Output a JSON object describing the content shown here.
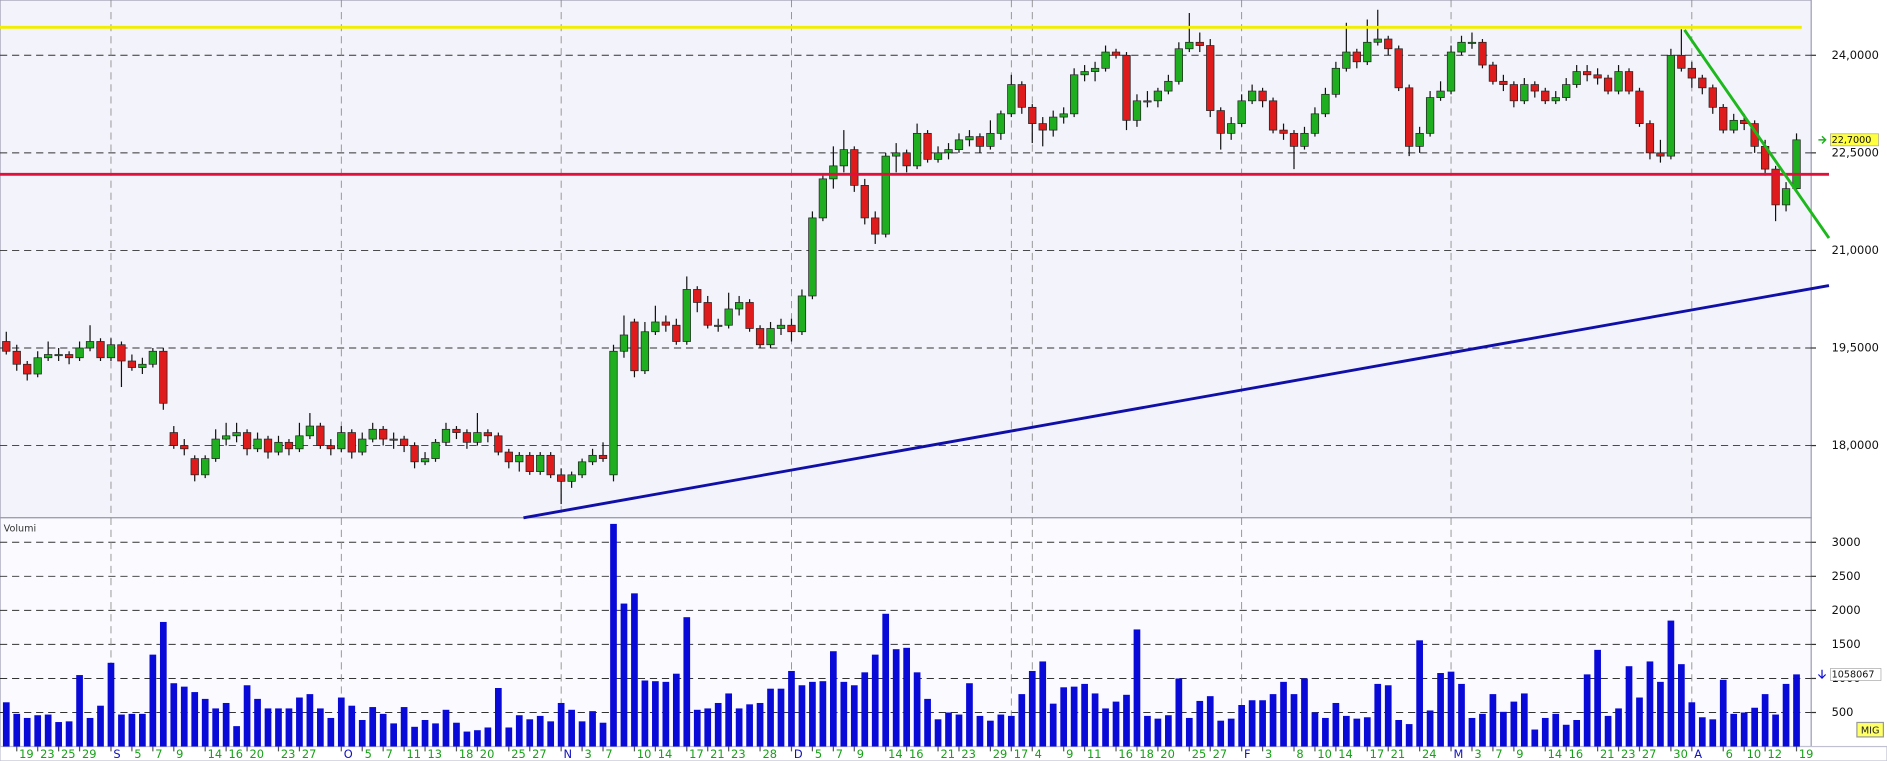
{
  "chart_data": {
    "type": "candlestick",
    "volume_title": "Volumi",
    "corner_label": "MIG",
    "xlim": [
      -0.6,
      172.4
    ],
    "ylim": [
      16.89,
      24.85
    ],
    "yticks": [
      {
        "value": 18,
        "label": "18,0000"
      },
      {
        "value": 19.5,
        "label": "19,5000"
      },
      {
        "value": 21,
        "label": "21,0000"
      },
      {
        "value": 22.5,
        "label": "22,5000"
      },
      {
        "value": 24,
        "label": "24,0000"
      }
    ],
    "y2lim": [
      0,
      3360
    ],
    "y2ticks": [
      500,
      1000,
      1500,
      2000,
      2500,
      3000
    ],
    "grid": true,
    "up_color": "#1fae1f",
    "down_color": "#e01b1b",
    "volume_color": "#0a0ad8",
    "last_price": {
      "value": 22.7,
      "label": "22,7000"
    },
    "last_volume": {
      "value": 1058.067,
      "label": "1058067"
    },
    "lines": [
      {
        "color": "#f2ee00",
        "x": [
          -0.6,
          171.5
        ],
        "y": [
          24.43,
          24.43
        ]
      },
      {
        "color": "#e0103a",
        "x": [
          -0.6,
          174.1
        ],
        "y": [
          22.17,
          22.17
        ]
      },
      {
        "color": "#1cb81c",
        "x": [
          160.3,
          174.1
        ],
        "y": [
          24.39,
          21.19
        ]
      },
      {
        "color": "#1010a8",
        "x": [
          49.4,
          174.1
        ],
        "y": [
          16.89,
          20.46
        ]
      }
    ],
    "categories": [
      null,
      "19",
      null,
      "23",
      null,
      "25",
      null,
      "29",
      null,
      null,
      "S",
      null,
      "5",
      null,
      "7",
      null,
      "9",
      null,
      null,
      "14",
      null,
      "16",
      null,
      "20",
      null,
      null,
      "23",
      null,
      "27",
      null,
      null,
      null,
      "O",
      null,
      "5",
      null,
      "7",
      null,
      "11",
      null,
      "13",
      null,
      null,
      "18",
      null,
      "20",
      null,
      null,
      "25",
      null,
      "27",
      null,
      null,
      "N",
      null,
      "3",
      null,
      "7",
      null,
      null,
      "10",
      null,
      "14",
      null,
      null,
      "17",
      null,
      "21",
      null,
      "23",
      null,
      null,
      "28",
      null,
      null,
      "D",
      null,
      "5",
      null,
      "7",
      null,
      "9",
      null,
      null,
      "14",
      null,
      "16",
      null,
      null,
      "21",
      null,
      "23",
      null,
      null,
      "29",
      null,
      "17",
      null,
      "4",
      null,
      null,
      "9",
      null,
      "11",
      null,
      null,
      "16",
      null,
      "18",
      null,
      "20",
      null,
      null,
      "25",
      null,
      "27",
      null,
      null,
      "F",
      null,
      "3",
      null,
      null,
      "8",
      null,
      "10",
      null,
      "14",
      null,
      null,
      "17",
      null,
      "21",
      null,
      null,
      "24",
      null,
      null,
      "M",
      null,
      "3",
      null,
      "7",
      null,
      "9",
      null,
      null,
      "14",
      null,
      "16",
      null,
      null,
      "21",
      null,
      "23",
      null,
      "27",
      null,
      null,
      "30",
      null,
      "A",
      null,
      null,
      "6",
      null,
      "10",
      null,
      "12",
      null,
      null,
      "19"
    ],
    "candles": [
      [
        19.6,
        19.75,
        19.4,
        19.45
      ],
      [
        19.45,
        19.55,
        19.15,
        19.25
      ],
      [
        19.25,
        19.3,
        19.0,
        19.1
      ],
      [
        19.1,
        19.45,
        19.05,
        19.35
      ],
      [
        19.35,
        19.6,
        19.3,
        19.4
      ],
      [
        19.4,
        19.5,
        19.3,
        19.4
      ],
      [
        19.4,
        19.45,
        19.25,
        19.35
      ],
      [
        19.35,
        19.6,
        19.3,
        19.5
      ],
      [
        19.5,
        19.85,
        19.45,
        19.6
      ],
      [
        19.6,
        19.65,
        19.3,
        19.35
      ],
      [
        19.35,
        19.65,
        19.3,
        19.55
      ],
      [
        19.55,
        19.6,
        18.9,
        19.3
      ],
      [
        19.3,
        19.4,
        19.15,
        19.2
      ],
      [
        19.2,
        19.35,
        19.1,
        19.25
      ],
      [
        19.25,
        19.5,
        19.2,
        19.45
      ],
      [
        19.45,
        19.5,
        18.55,
        18.65
      ],
      [
        18.2,
        18.3,
        17.95,
        18.0
      ],
      [
        18.0,
        18.1,
        17.85,
        17.95
      ],
      [
        17.8,
        17.85,
        17.45,
        17.55
      ],
      [
        17.55,
        17.85,
        17.5,
        17.8
      ],
      [
        17.8,
        18.25,
        17.75,
        18.1
      ],
      [
        18.1,
        18.35,
        18.0,
        18.15
      ],
      [
        18.15,
        18.35,
        18.05,
        18.2
      ],
      [
        18.2,
        18.25,
        17.85,
        17.95
      ],
      [
        17.95,
        18.2,
        17.9,
        18.1
      ],
      [
        18.1,
        18.15,
        17.8,
        17.9
      ],
      [
        17.9,
        18.15,
        17.85,
        18.05
      ],
      [
        18.05,
        18.1,
        17.85,
        17.95
      ],
      [
        17.95,
        18.35,
        17.9,
        18.15
      ],
      [
        18.15,
        18.5,
        18.1,
        18.3
      ],
      [
        18.3,
        18.35,
        17.95,
        18.0
      ],
      [
        18.0,
        18.1,
        17.85,
        17.95
      ],
      [
        17.95,
        18.3,
        17.9,
        18.2
      ],
      [
        18.2,
        18.25,
        17.8,
        17.9
      ],
      [
        17.9,
        18.2,
        17.85,
        18.1
      ],
      [
        18.1,
        18.35,
        18.05,
        18.25
      ],
      [
        18.25,
        18.3,
        18.0,
        18.1
      ],
      [
        18.1,
        18.2,
        17.95,
        18.1
      ],
      [
        18.1,
        18.15,
        17.9,
        18.0
      ],
      [
        18.0,
        18.05,
        17.65,
        17.75
      ],
      [
        17.75,
        17.9,
        17.7,
        17.8
      ],
      [
        17.8,
        18.1,
        17.75,
        18.05
      ],
      [
        18.05,
        18.35,
        18.0,
        18.25
      ],
      [
        18.25,
        18.3,
        18.1,
        18.2
      ],
      [
        18.2,
        18.25,
        17.95,
        18.05
      ],
      [
        18.05,
        18.5,
        18.0,
        18.2
      ],
      [
        18.2,
        18.25,
        18.05,
        18.15
      ],
      [
        18.15,
        18.2,
        17.85,
        17.9
      ],
      [
        17.9,
        17.95,
        17.65,
        17.75
      ],
      [
        17.75,
        17.9,
        17.6,
        17.85
      ],
      [
        17.85,
        17.9,
        17.55,
        17.6
      ],
      [
        17.6,
        17.9,
        17.55,
        17.85
      ],
      [
        17.85,
        17.9,
        17.5,
        17.55
      ],
      [
        17.55,
        17.65,
        17.1,
        17.45
      ],
      [
        17.45,
        17.6,
        17.35,
        17.55
      ],
      [
        17.55,
        17.8,
        17.5,
        17.75
      ],
      [
        17.75,
        17.95,
        17.7,
        17.85
      ],
      [
        17.85,
        18.05,
        17.75,
        17.8
      ],
      [
        17.55,
        19.55,
        17.45,
        19.45
      ],
      [
        19.45,
        20.0,
        19.35,
        19.7
      ],
      [
        19.9,
        19.95,
        19.05,
        19.15
      ],
      [
        19.15,
        19.9,
        19.1,
        19.75
      ],
      [
        19.75,
        20.15,
        19.7,
        19.9
      ],
      [
        19.9,
        20.0,
        19.75,
        19.85
      ],
      [
        19.85,
        19.95,
        19.55,
        19.6
      ],
      [
        19.6,
        20.6,
        19.55,
        20.4
      ],
      [
        20.4,
        20.45,
        20.05,
        20.2
      ],
      [
        20.2,
        20.3,
        19.8,
        19.85
      ],
      [
        19.85,
        19.95,
        19.75,
        19.85
      ],
      [
        19.85,
        20.35,
        19.8,
        20.1
      ],
      [
        20.1,
        20.3,
        20.0,
        20.2
      ],
      [
        20.2,
        20.25,
        19.75,
        19.8
      ],
      [
        19.8,
        19.85,
        19.5,
        19.55
      ],
      [
        19.55,
        19.9,
        19.5,
        19.8
      ],
      [
        19.8,
        19.95,
        19.7,
        19.85
      ],
      [
        19.85,
        19.95,
        19.6,
        19.75
      ],
      [
        19.75,
        20.4,
        19.7,
        20.3
      ],
      [
        20.3,
        21.6,
        20.25,
        21.5
      ],
      [
        21.5,
        22.15,
        21.45,
        22.1
      ],
      [
        22.1,
        22.6,
        21.95,
        22.3
      ],
      [
        22.3,
        22.85,
        22.2,
        22.55
      ],
      [
        22.55,
        22.6,
        21.9,
        22.0
      ],
      [
        22.0,
        22.1,
        21.4,
        21.5
      ],
      [
        21.5,
        21.6,
        21.1,
        21.25
      ],
      [
        21.25,
        22.5,
        21.2,
        22.45
      ],
      [
        22.45,
        22.65,
        22.2,
        22.5
      ],
      [
        22.5,
        22.55,
        22.2,
        22.3
      ],
      [
        22.3,
        22.95,
        22.25,
        22.8
      ],
      [
        22.8,
        22.85,
        22.35,
        22.4
      ],
      [
        22.4,
        22.6,
        22.35,
        22.5
      ],
      [
        22.5,
        22.65,
        22.4,
        22.55
      ],
      [
        22.55,
        22.8,
        22.5,
        22.7
      ],
      [
        22.7,
        22.85,
        22.6,
        22.75
      ],
      [
        22.75,
        22.8,
        22.5,
        22.6
      ],
      [
        22.6,
        23.0,
        22.55,
        22.8
      ],
      [
        22.8,
        23.15,
        22.7,
        23.1
      ],
      [
        23.1,
        23.7,
        23.05,
        23.55
      ],
      [
        23.55,
        23.6,
        23.1,
        23.2
      ],
      [
        23.2,
        23.25,
        22.65,
        22.95
      ],
      [
        22.95,
        23.05,
        22.6,
        22.85
      ],
      [
        22.85,
        23.15,
        22.75,
        23.05
      ],
      [
        23.05,
        23.2,
        22.95,
        23.1
      ],
      [
        23.1,
        23.8,
        23.05,
        23.7
      ],
      [
        23.7,
        23.85,
        23.6,
        23.75
      ],
      [
        23.75,
        23.9,
        23.6,
        23.8
      ],
      [
        23.8,
        24.15,
        23.75,
        24.05
      ],
      [
        24.05,
        24.1,
        23.95,
        24.0
      ],
      [
        24.0,
        24.05,
        22.85,
        23.0
      ],
      [
        23.0,
        23.4,
        22.9,
        23.3
      ],
      [
        23.3,
        23.45,
        23.2,
        23.3
      ],
      [
        23.3,
        23.5,
        23.2,
        23.45
      ],
      [
        23.45,
        23.7,
        23.4,
        23.6
      ],
      [
        23.6,
        24.2,
        23.55,
        24.1
      ],
      [
        24.1,
        24.65,
        24.05,
        24.2
      ],
      [
        24.2,
        24.35,
        24.05,
        24.15
      ],
      [
        24.15,
        24.25,
        23.05,
        23.15
      ],
      [
        23.15,
        23.2,
        22.55,
        22.8
      ],
      [
        22.8,
        23.05,
        22.7,
        22.95
      ],
      [
        22.95,
        23.4,
        22.9,
        23.3
      ],
      [
        23.3,
        23.55,
        23.25,
        23.45
      ],
      [
        23.45,
        23.5,
        23.2,
        23.3
      ],
      [
        23.3,
        23.35,
        22.8,
        22.85
      ],
      [
        22.85,
        22.95,
        22.7,
        22.8
      ],
      [
        22.8,
        22.85,
        22.25,
        22.6
      ],
      [
        22.6,
        22.9,
        22.55,
        22.8
      ],
      [
        22.8,
        23.2,
        22.75,
        23.1
      ],
      [
        23.1,
        23.5,
        23.05,
        23.4
      ],
      [
        23.4,
        23.9,
        23.35,
        23.8
      ],
      [
        23.8,
        24.5,
        23.75,
        24.05
      ],
      [
        24.05,
        24.1,
        23.8,
        23.9
      ],
      [
        23.9,
        24.55,
        23.85,
        24.2
      ],
      [
        24.2,
        24.7,
        24.15,
        24.25
      ],
      [
        24.25,
        24.3,
        24.0,
        24.1
      ],
      [
        24.1,
        24.15,
        23.45,
        23.5
      ],
      [
        23.5,
        23.55,
        22.45,
        22.6
      ],
      [
        22.6,
        22.9,
        22.5,
        22.8
      ],
      [
        22.8,
        23.45,
        22.75,
        23.35
      ],
      [
        23.35,
        23.6,
        23.3,
        23.45
      ],
      [
        23.45,
        24.15,
        23.4,
        24.05
      ],
      [
        24.05,
        24.3,
        24.0,
        24.2
      ],
      [
        24.2,
        24.35,
        24.1,
        24.2
      ],
      [
        24.2,
        24.25,
        23.8,
        23.85
      ],
      [
        23.85,
        23.9,
        23.55,
        23.6
      ],
      [
        23.6,
        23.7,
        23.45,
        23.55
      ],
      [
        23.55,
        23.6,
        23.2,
        23.3
      ],
      [
        23.3,
        23.65,
        23.25,
        23.55
      ],
      [
        23.55,
        23.6,
        23.35,
        23.45
      ],
      [
        23.45,
        23.5,
        23.25,
        23.3
      ],
      [
        23.3,
        23.45,
        23.25,
        23.35
      ],
      [
        23.35,
        23.65,
        23.3,
        23.55
      ],
      [
        23.55,
        23.85,
        23.5,
        23.75
      ],
      [
        23.75,
        23.85,
        23.6,
        23.7
      ],
      [
        23.7,
        23.8,
        23.55,
        23.65
      ],
      [
        23.65,
        23.7,
        23.4,
        23.45
      ],
      [
        23.45,
        23.85,
        23.4,
        23.75
      ],
      [
        23.75,
        23.8,
        23.4,
        23.45
      ],
      [
        23.45,
        23.5,
        22.9,
        22.95
      ],
      [
        22.95,
        23.0,
        22.4,
        22.5
      ],
      [
        22.5,
        22.7,
        22.35,
        22.45
      ],
      [
        22.45,
        24.1,
        22.4,
        24.0
      ],
      [
        24.0,
        24.4,
        23.75,
        23.8
      ],
      [
        23.8,
        23.9,
        23.5,
        23.65
      ],
      [
        23.65,
        23.7,
        23.4,
        23.5
      ],
      [
        23.5,
        23.55,
        23.1,
        23.2
      ],
      [
        23.2,
        23.25,
        22.8,
        22.85
      ],
      [
        22.85,
        23.1,
        22.8,
        23.0
      ],
      [
        23.0,
        23.1,
        22.85,
        22.95
      ],
      [
        22.95,
        23.0,
        22.5,
        22.6
      ],
      [
        22.6,
        22.7,
        22.15,
        22.25
      ],
      [
        22.25,
        22.3,
        21.45,
        21.7
      ],
      [
        21.7,
        22.05,
        21.6,
        21.95
      ],
      [
        21.95,
        22.8,
        21.9,
        22.7
      ]
    ],
    "volume": [
      650,
      480,
      420,
      460,
      470,
      360,
      370,
      1050,
      420,
      600,
      1230,
      470,
      480,
      480,
      1350,
      1830,
      930,
      880,
      800,
      700,
      560,
      640,
      300,
      900,
      700,
      560,
      560,
      560,
      720,
      770,
      560,
      420,
      720,
      600,
      390,
      580,
      480,
      340,
      580,
      290,
      390,
      340,
      540,
      350,
      220,
      240,
      280,
      860,
      280,
      460,
      400,
      450,
      370,
      640,
      540,
      370,
      520,
      350,
      3270,
      2100,
      2250,
      970,
      960,
      950,
      1070,
      1900,
      540,
      560,
      640,
      780,
      560,
      620,
      640,
      850,
      850,
      1110,
      900,
      950,
      960,
      1400,
      950,
      900,
      1090,
      1350,
      1950,
      1430,
      1450,
      1090,
      700,
      400,
      500,
      470,
      930,
      450,
      380,
      470,
      450,
      770,
      1110,
      1250,
      630,
      870,
      880,
      920,
      780,
      560,
      660,
      760,
      1720,
      450,
      410,
      460,
      1000,
      420,
      670,
      740,
      380,
      410,
      610,
      680,
      680,
      770,
      950,
      770,
      1000,
      500,
      420,
      640,
      450,
      410,
      430,
      920,
      900,
      390,
      330,
      1560,
      530,
      1080,
      1100,
      920,
      420,
      480,
      770,
      510,
      660,
      780,
      250,
      420,
      480,
      320,
      390,
      1060,
      1420,
      450,
      560,
      1180,
      720,
      1250,
      950,
      1850,
      1210,
      650,
      430,
      400,
      980,
      480,
      500,
      570,
      770,
      470,
      920,
      1060
    ]
  }
}
